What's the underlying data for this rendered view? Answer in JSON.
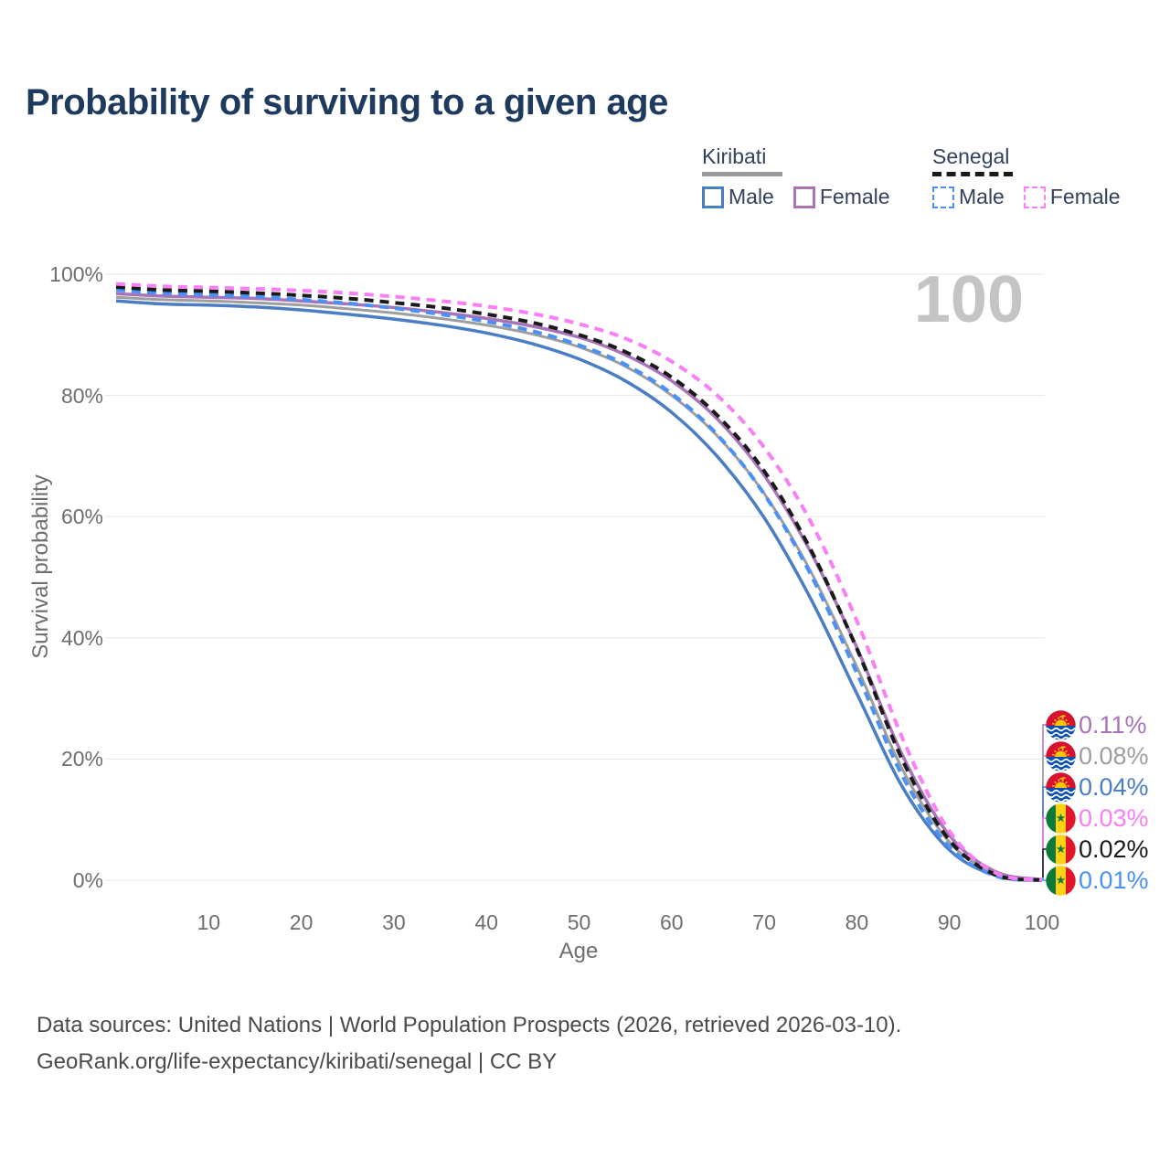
{
  "title": "Probability of surviving to a given age",
  "legend": {
    "groups": [
      {
        "name": "Kiribati",
        "underline_color": "#9a9a9a",
        "underline_dashed": false,
        "items": [
          {
            "label": "Male",
            "color": "#4a7dc4",
            "dashed": false
          },
          {
            "label": "Female",
            "color": "#a873b8",
            "dashed": false
          }
        ]
      },
      {
        "name": "Senegal",
        "underline_color": "#1a1a1a",
        "underline_dashed": true,
        "items": [
          {
            "label": "Male",
            "color": "#4a90f7",
            "dashed": true
          },
          {
            "label": "Female",
            "color": "#fa7ef5",
            "dashed": true
          }
        ]
      }
    ]
  },
  "watermark": "100",
  "end_labels": [
    {
      "country": "Kiribati",
      "series": "Female",
      "value": "0.11%",
      "color": "#a873b8"
    },
    {
      "country": "Kiribati",
      "series": "All",
      "value": "0.08%",
      "color": "#9e9e9e"
    },
    {
      "country": "Kiribati",
      "series": "Male",
      "value": "0.04%",
      "color": "#4a7dc4"
    },
    {
      "country": "Senegal",
      "series": "Female",
      "value": "0.03%",
      "color": "#fa7ef5"
    },
    {
      "country": "Senegal",
      "series": "All",
      "value": "0.02%",
      "color": "#1a1a1a"
    },
    {
      "country": "Senegal",
      "series": "Male",
      "value": "0.01%",
      "color": "#4a90f7"
    }
  ],
  "footer": {
    "line1": "Data sources: United Nations | World Population Prospects (2026, retrieved 2026-03-10).",
    "line2": "GeoRank.org/life-expectancy/kiribati/senegal | CC BY"
  },
  "chart_data": {
    "type": "line",
    "title": "Probability of surviving to a given age",
    "xlabel": "Age",
    "ylabel": "Survival probability",
    "xlim": [
      0,
      100
    ],
    "ylim": [
      0,
      100
    ],
    "x_ticks": [
      10,
      20,
      30,
      40,
      50,
      60,
      70,
      80,
      90,
      100
    ],
    "y_ticks": [
      0,
      20,
      40,
      60,
      80,
      100
    ],
    "grid": "horizontal",
    "legend_position": "top-right",
    "ages": [
      0,
      5,
      10,
      15,
      20,
      25,
      30,
      35,
      40,
      45,
      50,
      55,
      60,
      65,
      70,
      75,
      80,
      85,
      90,
      95,
      100
    ],
    "series": [
      {
        "name": "Kiribati All",
        "country": "Kiribati",
        "sex": "All",
        "color": "#9e9e9e",
        "dashed": false,
        "width": 3,
        "values": [
          96.2,
          95.8,
          95.6,
          95.3,
          94.9,
          94.3,
          93.6,
          92.7,
          91.6,
          90.1,
          88.0,
          84.8,
          80.0,
          73.2,
          63.8,
          51.0,
          35.2,
          18.1,
          6.3,
          1.1,
          0.08
        ]
      },
      {
        "name": "Kiribati Male",
        "country": "Kiribati",
        "sex": "Male",
        "color": "#4a7dc4",
        "dashed": false,
        "width": 3.5,
        "values": [
          95.6,
          95.1,
          94.9,
          94.6,
          94.1,
          93.4,
          92.6,
          91.6,
          90.3,
          88.5,
          86.0,
          82.4,
          77.2,
          69.8,
          59.8,
          46.5,
          30.8,
          15.2,
          5.0,
          0.8,
          0.04
        ]
      },
      {
        "name": "Kiribati Female",
        "country": "Kiribati",
        "sex": "Female",
        "color": "#a873b8",
        "dashed": false,
        "width": 3.5,
        "values": [
          96.8,
          96.4,
          96.2,
          96.0,
          95.6,
          95.1,
          94.5,
          93.7,
          92.7,
          91.4,
          89.6,
          86.7,
          82.4,
          76.0,
          66.8,
          54.2,
          38.4,
          20.4,
          7.4,
          1.4,
          0.11
        ]
      },
      {
        "name": "Senegal Male",
        "country": "Senegal",
        "sex": "Male",
        "color": "#4a90f7",
        "dashed": true,
        "width": 4,
        "values": [
          97.4,
          96.9,
          96.6,
          96.3,
          95.8,
          95.2,
          94.4,
          93.4,
          92.2,
          90.6,
          88.3,
          85.1,
          80.3,
          73.4,
          63.7,
          50.5,
          34.2,
          17.0,
          5.5,
          0.7,
          0.01
        ]
      },
      {
        "name": "Senegal All",
        "country": "Senegal",
        "sex": "All",
        "color": "#1a1a1a",
        "dashed": true,
        "width": 4,
        "values": [
          97.9,
          97.4,
          97.2,
          96.9,
          96.5,
          96.0,
          95.3,
          94.5,
          93.4,
          92.0,
          90.0,
          87.2,
          83.0,
          76.6,
          67.5,
          54.6,
          38.2,
          19.6,
          6.6,
          0.9,
          0.02
        ]
      },
      {
        "name": "Senegal Female",
        "country": "Senegal",
        "sex": "Female",
        "color": "#fa7ef5",
        "dashed": true,
        "width": 4,
        "values": [
          98.4,
          98.0,
          97.8,
          97.6,
          97.3,
          96.9,
          96.3,
          95.6,
          94.7,
          93.5,
          91.8,
          89.4,
          85.6,
          79.9,
          71.4,
          59.2,
          42.8,
          23.2,
          8.1,
          1.2,
          0.03
        ]
      }
    ]
  }
}
